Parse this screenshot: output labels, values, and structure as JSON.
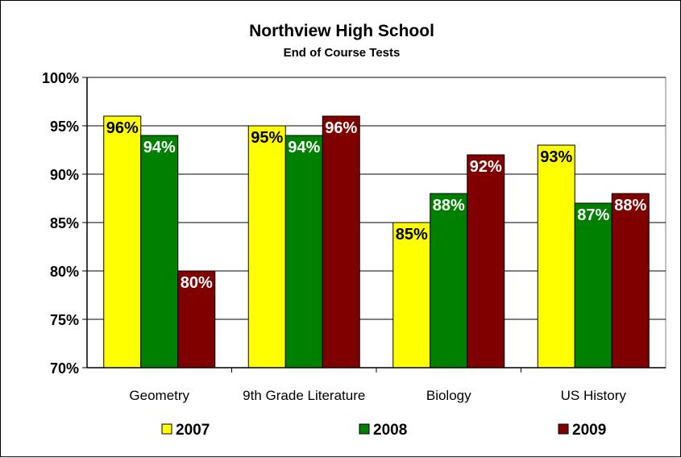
{
  "chart_data": {
    "type": "bar",
    "title": "Northview High School",
    "subtitle": "End of Course Tests",
    "categories": [
      "Geometry",
      "9th Grade Literature",
      "Biology",
      "US History"
    ],
    "series": [
      {
        "name": "2007",
        "values": [
          96,
          95,
          85,
          93
        ],
        "labels": [
          "96%",
          "95%",
          "85%",
          "93%"
        ],
        "color": "#FFFF00",
        "label_color": "#000000"
      },
      {
        "name": "2008",
        "values": [
          94,
          94,
          88,
          87
        ],
        "labels": [
          "94%",
          "94%",
          "88%",
          "87%"
        ],
        "color": "#008000",
        "label_color": "#FFFFFF"
      },
      {
        "name": "2009",
        "values": [
          80,
          96,
          92,
          88
        ],
        "labels": [
          "80%",
          "96%",
          "92%",
          "88%"
        ],
        "color": "#800000",
        "label_color": "#FFFFFF"
      }
    ],
    "ylim": [
      70,
      100
    ],
    "yticks": [
      100,
      95,
      90,
      85,
      80,
      75,
      70
    ],
    "ytick_labels": [
      "100%",
      "95%",
      "90%",
      "85%",
      "80%",
      "75%",
      "70%"
    ],
    "grid": true,
    "legend_position": "bottom"
  }
}
